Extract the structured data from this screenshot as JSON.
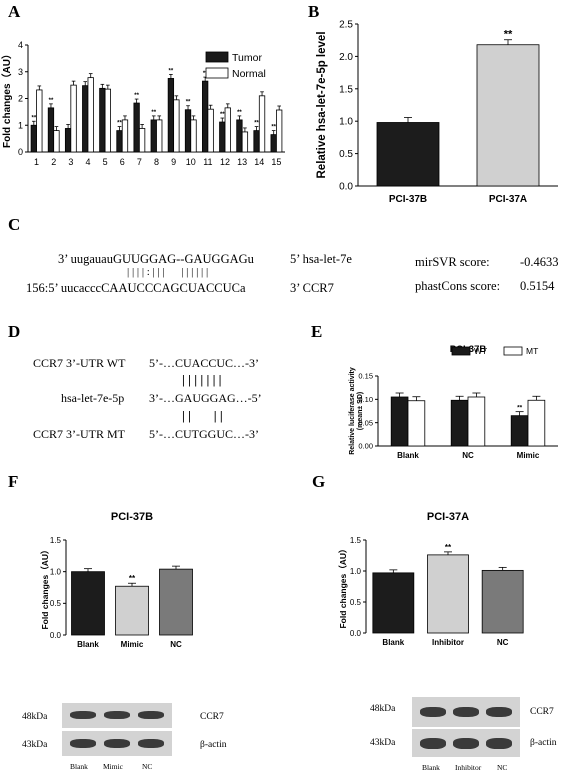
{
  "panels": {
    "A": "A",
    "B": "B",
    "C": "C",
    "D": "D",
    "E": "E",
    "F": "F",
    "G": "G"
  },
  "chart_data": [
    {
      "panel": "A",
      "type": "bar",
      "ylabel": "Fold changes（AU）",
      "ylim": [
        0,
        4
      ],
      "yticks": [
        "0",
        "1",
        "2",
        "3",
        "4"
      ],
      "categories": [
        "1",
        "2",
        "3",
        "4",
        "5",
        "6",
        "7",
        "8",
        "9",
        "10",
        "11",
        "12",
        "13",
        "14",
        "15"
      ],
      "legend_placement": "top-right",
      "series": [
        {
          "name": "Tumor",
          "color": "#1a1a1a",
          "values": [
            1.0,
            1.65,
            0.88,
            2.48,
            2.38,
            0.8,
            1.83,
            1.2,
            2.75,
            1.58,
            2.65,
            1.12,
            1.2,
            0.8,
            0.65
          ]
        },
        {
          "name": "Normal",
          "color": "#ffffff",
          "values": [
            2.32,
            0.8,
            2.5,
            2.78,
            2.35,
            1.2,
            0.88,
            1.2,
            1.95,
            1.2,
            1.6,
            1.65,
            0.75,
            2.1,
            1.57
          ]
        }
      ],
      "sig": "**"
    },
    {
      "panel": "B",
      "type": "bar",
      "ylabel": "Relative hsa-let-7e-5p level",
      "ylim": [
        0,
        2.5
      ],
      "yticks": [
        "0.0",
        "0.5",
        "1.0",
        "1.5",
        "2.0",
        "2.5"
      ],
      "categories": [
        "PCI-37B",
        "PCI-37A"
      ],
      "values": [
        0.98,
        2.18
      ],
      "colors": [
        "#1c1c1c",
        "#d0d0d0"
      ],
      "sig": "**"
    },
    {
      "panel": "E",
      "type": "bar",
      "title": "PCI-37B",
      "ylabel": "Relative luciferase activity",
      "ylabel2": "(mean± SD)",
      "ylim": [
        0,
        0.15
      ],
      "yticks": [
        "0.00",
        "0.05",
        "0.10",
        "0.15"
      ],
      "categories": [
        "Blank",
        "NC",
        "Mimic"
      ],
      "legend_placement": "top-right",
      "series": [
        {
          "name": "WT",
          "color": "#1a1a1a",
          "values": [
            0.105,
            0.098,
            0.065
          ]
        },
        {
          "name": "MT",
          "color": "#ffffff",
          "values": [
            0.097,
            0.105,
            0.098
          ]
        }
      ],
      "sig": "**"
    },
    {
      "panel": "F",
      "type": "bar",
      "title": "PCI-37B",
      "ylabel": "Fold changes（AU）",
      "ylim": [
        0,
        1.5
      ],
      "yticks": [
        "0.0",
        "0.5",
        "1.0",
        "1.5"
      ],
      "categories": [
        "Blank",
        "Mimic",
        "NC"
      ],
      "values": [
        1.0,
        0.77,
        1.04
      ],
      "colors": [
        "#1c1c1c",
        "#d0d0d0",
        "#7a7a7a"
      ],
      "sig": "**"
    },
    {
      "panel": "G",
      "type": "bar",
      "title": "PCI-37A",
      "ylabel": "Fold changes（AU）",
      "ylim": [
        0,
        1.5
      ],
      "yticks": [
        "0.0",
        "0.5",
        "1.0",
        "1.5"
      ],
      "categories": [
        "Blank",
        "Inhibitor",
        "NC"
      ],
      "values": [
        0.97,
        1.26,
        1.01
      ],
      "colors": [
        "#1c1c1c",
        "#d0d0d0",
        "#7a7a7a"
      ],
      "sig": "**"
    }
  ],
  "C": {
    "top_seq": "3’ uugauauGUUGGAG--GAUGGAGu",
    "top_lbl": "5’ hsa-let-7e",
    "pairing": "| | | | : | | |      | | | | | |",
    "bot_seq": "156:5’ uucacccCAAUCCCAGCUACCUCa",
    "bot_lbl": "3’ CCR7",
    "mirsvr_label": "mirSVR score:",
    "mirsvr_value": "-0.4633",
    "phast_label": "phastCons score:",
    "phast_value": "0.5154"
  },
  "D": {
    "wt_label": "CCR7 3’-UTR WT",
    "wt_seq": "5’-…CUACCUC…-3’",
    "pair1": "| | | | | | |",
    "mir_label": "hsa-let-7e-5p",
    "mir_seq": "3’-…GAUGGAG…-5’",
    "pair2": "| |       | |",
    "mt_label": "CCR7 3’-UTR MT",
    "mt_seq": "5’-…CUTGGUC…-3’"
  },
  "blot_F": {
    "kda_top": "48kDa",
    "kda_bot": "43kDa",
    "prot_top": "CCR7",
    "prot_bot": "β-actin",
    "lanes": [
      "Blank",
      "Mimic",
      "NC"
    ]
  },
  "blot_G": {
    "kda_top": "48kDa",
    "kda_bot": "43kDa",
    "prot_top": "CCR7",
    "prot_bot": "β-actin",
    "lanes": [
      "Blank",
      "Inhibitor",
      "NC"
    ]
  }
}
